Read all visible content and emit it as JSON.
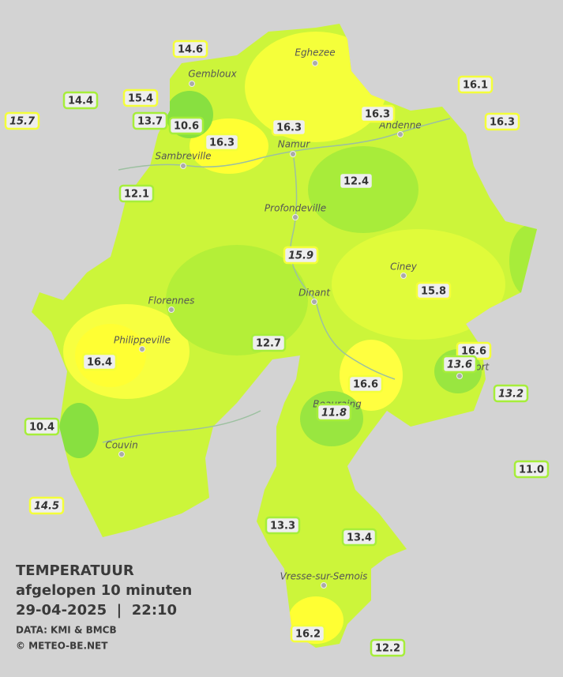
{
  "title": "TEMPERATUUR",
  "subtitle": "afgelopen 10 minuten",
  "datetime": "29-04-2025  |  22:10",
  "source": "DATA: KMI & BMCB",
  "copyright": "© METEO-BE.NET",
  "cities": [
    "Eghezee",
    "Gembloux",
    "Andenne",
    "Namur",
    "Sambreville",
    "Profondeville",
    "Ciney",
    "Dinant",
    "Florennes",
    "Philippeville",
    "Beauraing",
    "Rochefort",
    "Couvin",
    "Vresse-sur-Semois"
  ],
  "stations": [
    {
      "label": "14.6",
      "italic": false
    },
    {
      "label": "16.1",
      "italic": false
    },
    {
      "label": "14.4",
      "italic": false
    },
    {
      "label": "15.4",
      "italic": false
    },
    {
      "label": "15.7",
      "italic": true
    },
    {
      "label": "13.7",
      "italic": false
    },
    {
      "label": "10.6",
      "italic": false
    },
    {
      "label": "16.3",
      "italic": false
    },
    {
      "label": "16.3",
      "italic": false
    },
    {
      "label": "16.3",
      "italic": false
    },
    {
      "label": "16.3",
      "italic": false
    },
    {
      "label": "12.1",
      "italic": false
    },
    {
      "label": "12.4",
      "italic": false
    },
    {
      "label": "15.9",
      "italic": true
    },
    {
      "label": "15.8",
      "italic": false
    },
    {
      "label": "12.7",
      "italic": false
    },
    {
      "label": "16.6",
      "italic": false
    },
    {
      "label": "13.6",
      "italic": true
    },
    {
      "label": "16.4",
      "italic": false
    },
    {
      "label": "16.6",
      "italic": false
    },
    {
      "label": "13.2",
      "italic": true
    },
    {
      "label": "11.8",
      "italic": true
    },
    {
      "label": "10.4",
      "italic": false
    },
    {
      "label": "11.0",
      "italic": false
    },
    {
      "label": "14.5",
      "italic": true
    },
    {
      "label": "13.3",
      "italic": false
    },
    {
      "label": "13.4",
      "italic": false
    },
    {
      "label": "16.2",
      "italic": false
    },
    {
      "label": "12.2",
      "italic": false
    }
  ]
}
